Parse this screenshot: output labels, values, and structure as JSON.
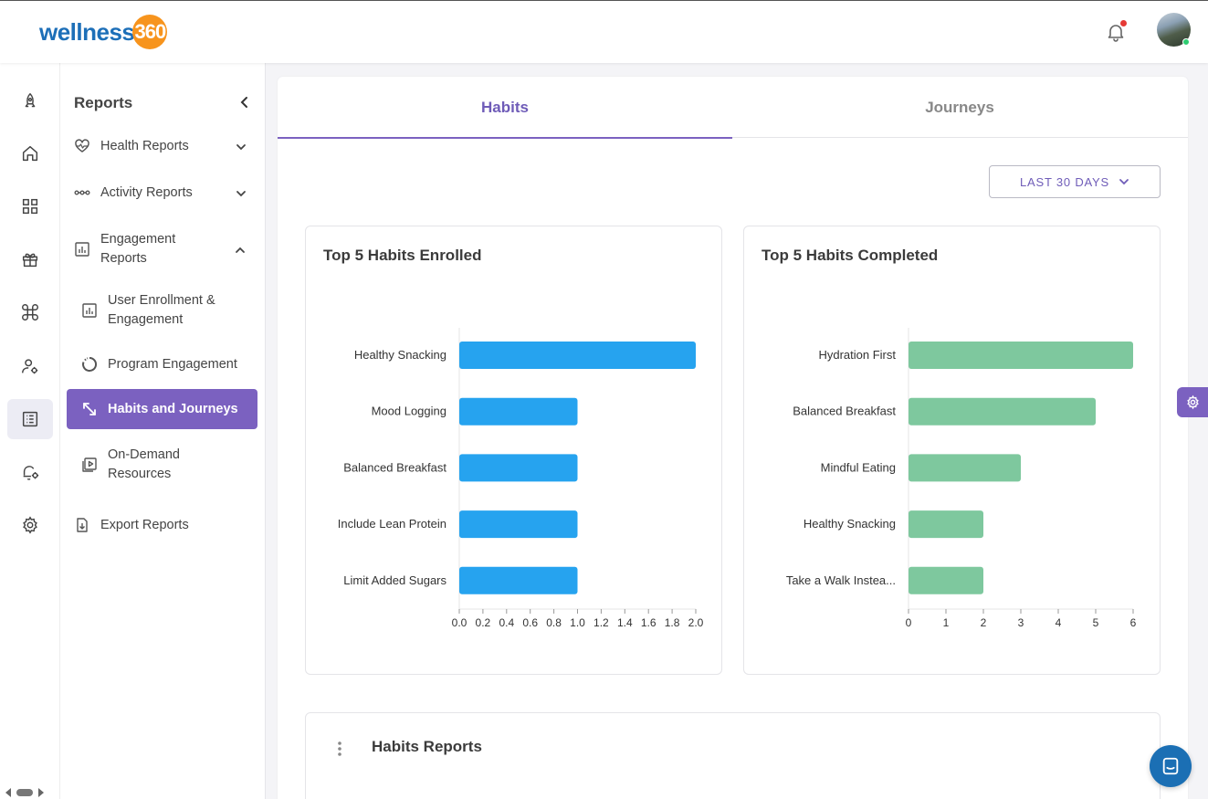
{
  "brand": {
    "logo_word": "wellness",
    "logo_badge": "360"
  },
  "topbar": {
    "notification_icon": "bell-icon",
    "has_unread": true
  },
  "rail": {
    "items": [
      {
        "icon": "rocket-icon"
      },
      {
        "icon": "home-icon"
      },
      {
        "icon": "grid-icon"
      },
      {
        "icon": "gift-icon"
      },
      {
        "icon": "command-icon"
      },
      {
        "icon": "user-settings-icon"
      },
      {
        "icon": "list-report-icon",
        "active": true
      },
      {
        "icon": "bell-settings-icon"
      },
      {
        "icon": "gear-icon"
      }
    ]
  },
  "sidebar": {
    "title": "Reports",
    "items": [
      {
        "label": "Health Reports",
        "icon": "heartbeat-icon",
        "expanded": false
      },
      {
        "label": "Activity Reports",
        "icon": "activity-icon",
        "expanded": false
      },
      {
        "label": "Engagement Reports",
        "icon": "bar-chart-icon",
        "expanded": true
      },
      {
        "label": "User Enrollment & Engagement",
        "icon": "bar-chart-icon"
      },
      {
        "label": "Program Engagement",
        "icon": "donut-icon"
      },
      {
        "label": "Habits and Journeys",
        "icon": "arrows-icon",
        "active": true
      },
      {
        "label": "On-Demand Resources",
        "icon": "video-icon"
      },
      {
        "label": "Export Reports",
        "icon": "file-download-icon"
      }
    ]
  },
  "tabs": [
    {
      "label": "Habits",
      "active": true
    },
    {
      "label": "Journeys",
      "active": false
    }
  ],
  "range": {
    "label": "LAST 30 DAYS"
  },
  "charts": {
    "enrolled_title": "Top 5 Habits Enrolled",
    "completed_title": "Top 5 Habits Completed"
  },
  "chart_data": [
    {
      "type": "bar",
      "orientation": "horizontal",
      "title": "Top 5 Habits Enrolled",
      "categories": [
        "Healthy Snacking",
        "Mood Logging",
        "Balanced Breakfast",
        "Include Lean Protein",
        "Limit Added Sugars"
      ],
      "values": [
        2,
        1,
        1,
        1,
        1
      ],
      "xlim": [
        0,
        2
      ],
      "ticks": [
        "0.0",
        "0.2",
        "0.4",
        "0.6",
        "0.8",
        "1.0",
        "1.2",
        "1.4",
        "1.6",
        "1.8",
        "2.0"
      ],
      "color": "#26a3ef"
    },
    {
      "type": "bar",
      "orientation": "horizontal",
      "title": "Top 5 Habits Completed",
      "categories": [
        "Hydration First",
        "Balanced Breakfast",
        "Mindful Eating",
        "Healthy Snacking",
        "Take a Walk Instea..."
      ],
      "values": [
        6,
        5,
        3,
        2,
        2
      ],
      "xlim": [
        0,
        6
      ],
      "ticks": [
        "0",
        "1",
        "2",
        "3",
        "4",
        "5",
        "6"
      ],
      "color": "#7ec89e"
    }
  ],
  "reports": {
    "title": "Habits Reports"
  },
  "colors": {
    "accent": "#7b61c0",
    "brand_blue": "#1d6fb8",
    "brand_orange": "#f7941d"
  }
}
